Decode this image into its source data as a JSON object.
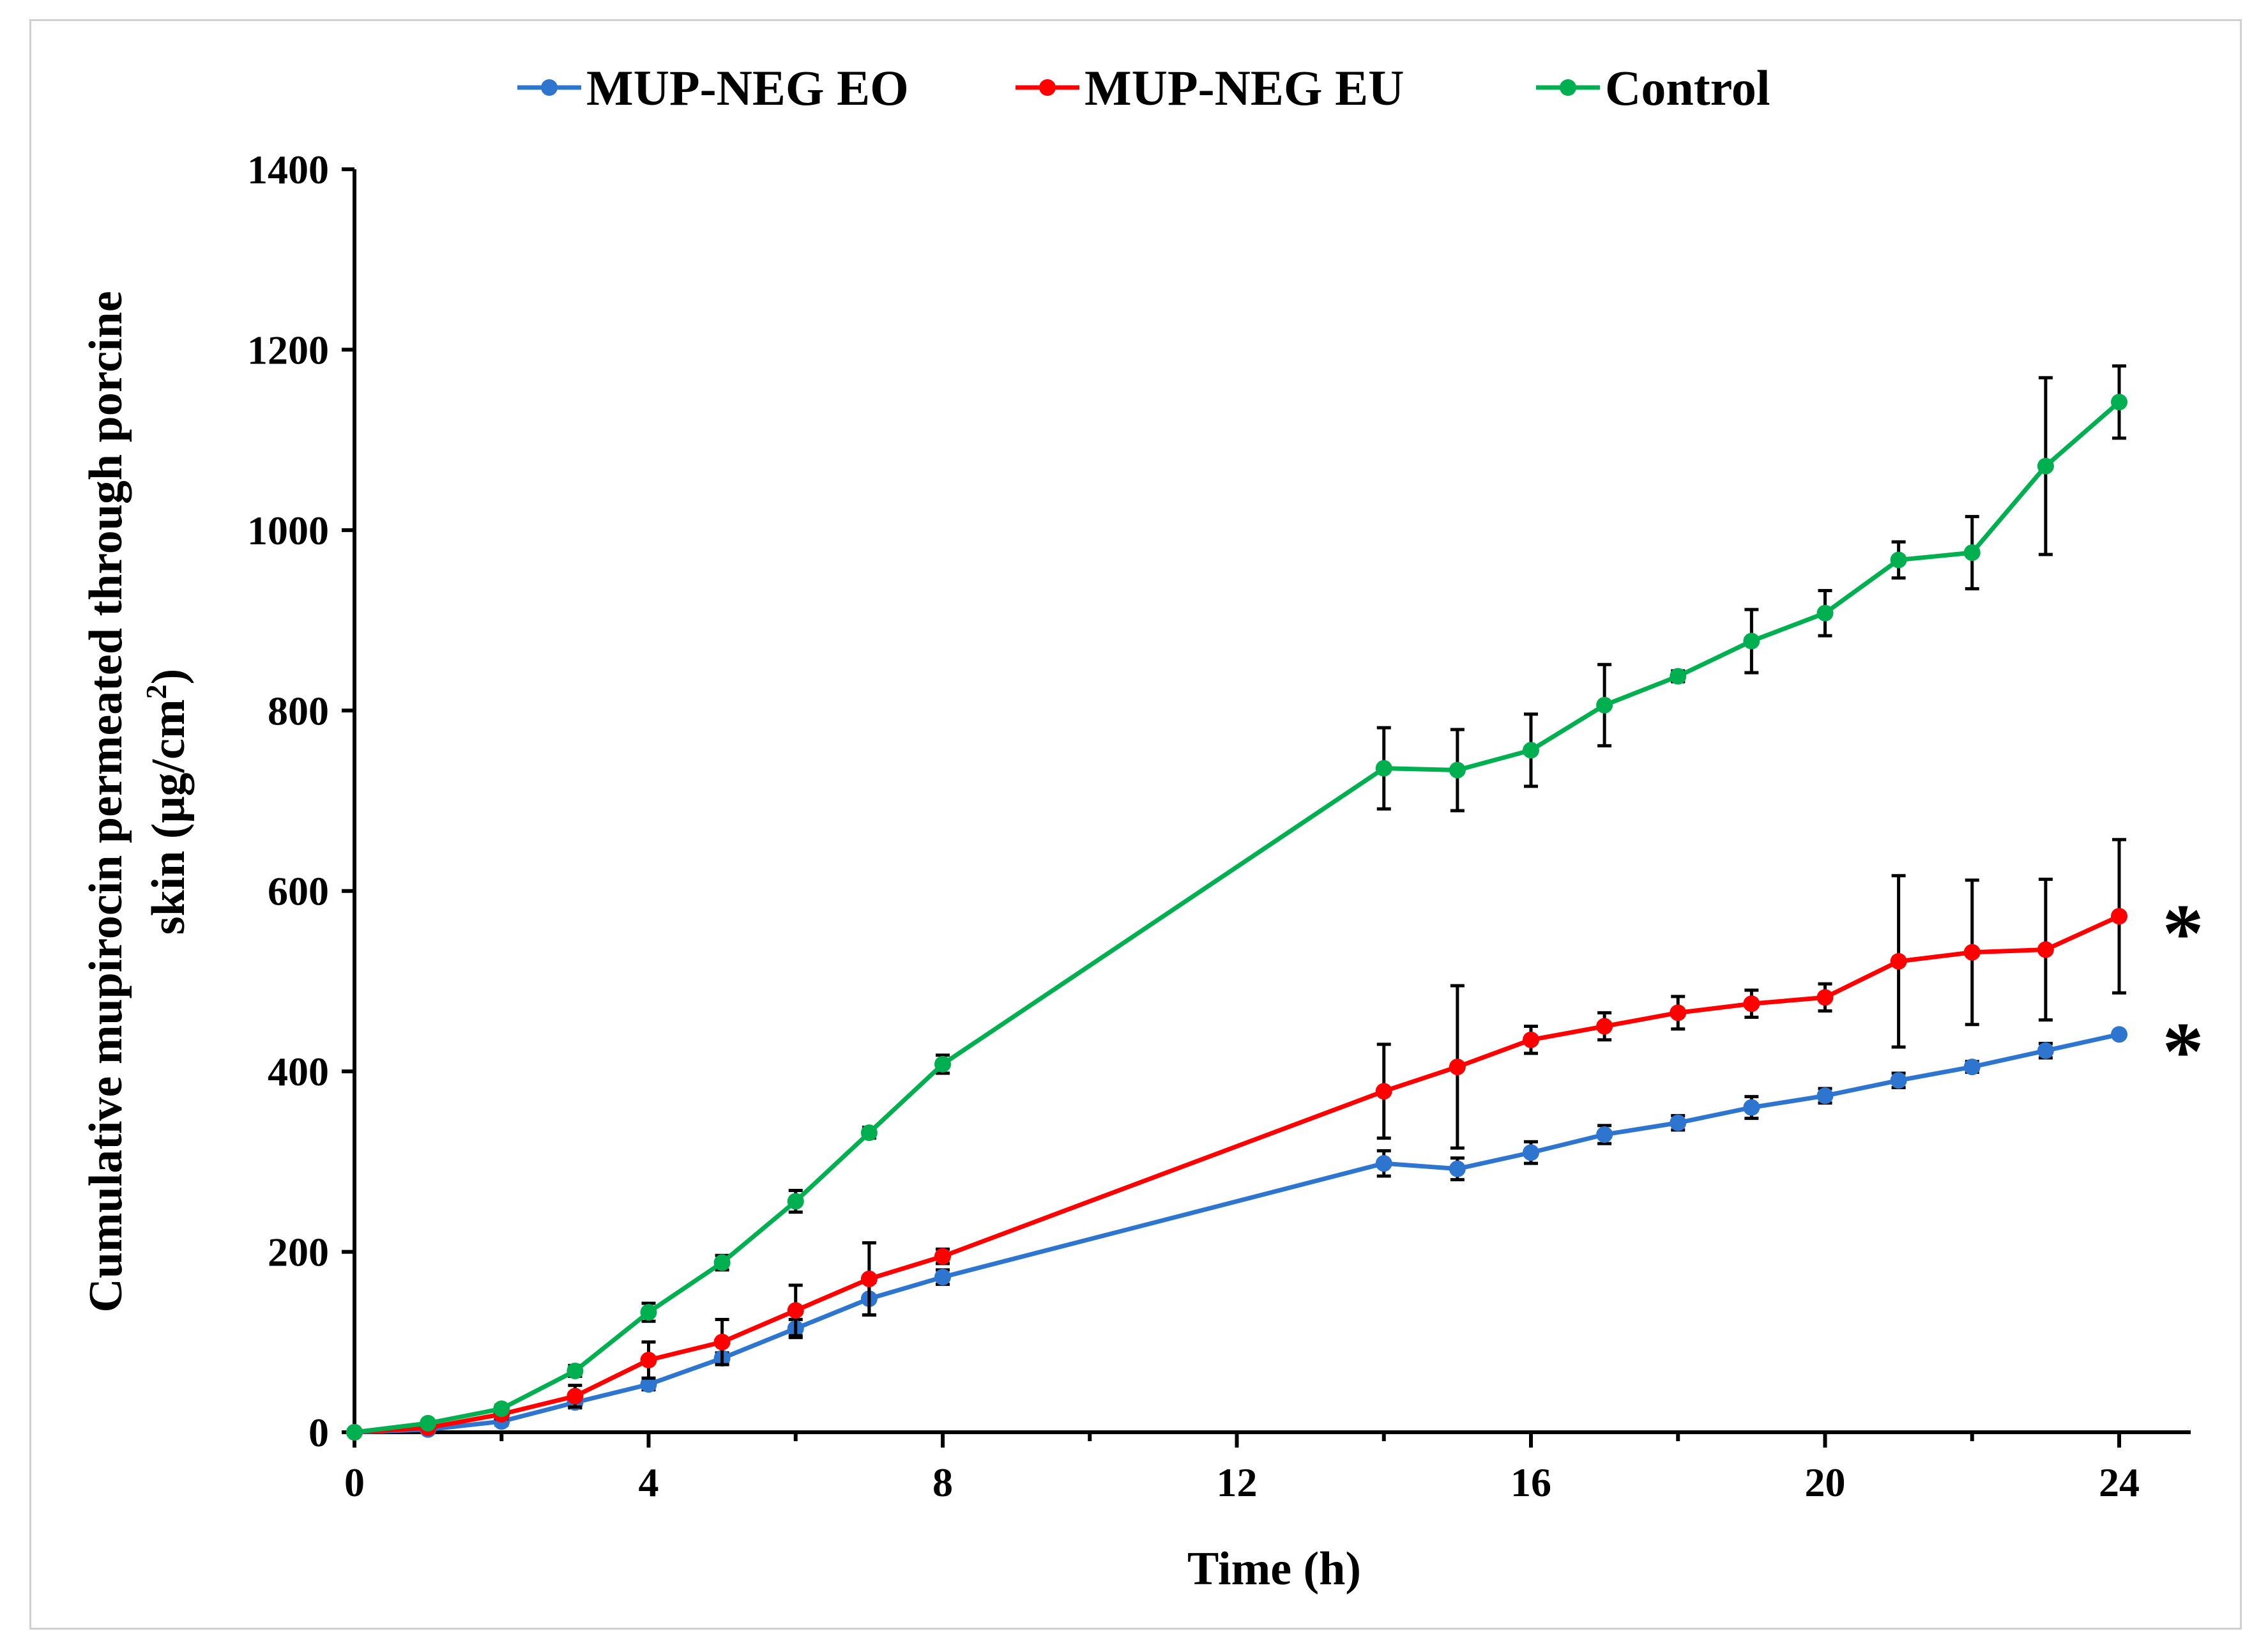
{
  "chart_data": {
    "type": "line",
    "title": "",
    "xlabel": "Time (h)",
    "ylabel_line1": "Cumulative  mupirocin  permeated through porcine",
    "ylabel_line2_main": "skin (μg/cm",
    "ylabel_line2_sup": "2",
    "ylabel_line2_end": ")",
    "xlim": [
      0,
      25
    ],
    "ylim": [
      0,
      1400
    ],
    "x_ticks": [
      0,
      4,
      8,
      12,
      16,
      20,
      24
    ],
    "y_ticks": [
      0,
      200,
      400,
      600,
      800,
      1000,
      1200,
      1400
    ],
    "legend_position": "top-center",
    "error_bar_cap": "top-and-bottom",
    "series": [
      {
        "name": "MUP-NEG EO",
        "color": "#2E75D0",
        "x": [
          0,
          1,
          2,
          3,
          4,
          5,
          6,
          7,
          8,
          14,
          15,
          16,
          17,
          18,
          19,
          20,
          21,
          22,
          23,
          24
        ],
        "y": [
          0,
          3,
          12,
          33,
          53,
          82,
          115,
          148,
          172,
          298,
          292,
          310,
          330,
          343,
          360,
          373,
          390,
          405,
          423,
          441
        ],
        "err": [
          0,
          2,
          4,
          6,
          6,
          6,
          10,
          18,
          8,
          14,
          12,
          12,
          10,
          8,
          12,
          8,
          8,
          6,
          8,
          0
        ]
      },
      {
        "name": "MUP-NEG EU",
        "color": "#FF0000",
        "x": [
          0,
          1,
          2,
          3,
          4,
          5,
          6,
          7,
          8,
          14,
          15,
          16,
          17,
          18,
          19,
          20,
          21,
          22,
          23,
          24
        ],
        "y": [
          0,
          5,
          20,
          40,
          80,
          100,
          135,
          170,
          195,
          378,
          405,
          435,
          450,
          465,
          475,
          482,
          522,
          532,
          535,
          572
        ],
        "err": [
          0,
          2,
          5,
          12,
          20,
          25,
          28,
          40,
          8,
          52,
          90,
          15,
          15,
          18,
          15,
          15,
          95,
          80,
          78,
          85
        ]
      },
      {
        "name": "Control",
        "color": "#00B050",
        "x": [
          0,
          1,
          2,
          3,
          4,
          5,
          6,
          7,
          8,
          14,
          15,
          16,
          17,
          18,
          19,
          20,
          21,
          22,
          23,
          24
        ],
        "y": [
          0,
          10,
          26,
          68,
          133,
          188,
          256,
          332,
          408,
          736,
          734,
          756,
          806,
          838,
          877,
          908,
          967,
          975,
          1071,
          1142
        ],
        "err": [
          0,
          3,
          4,
          6,
          10,
          8,
          12,
          6,
          10,
          45,
          45,
          40,
          45,
          6,
          35,
          25,
          20,
          40,
          98,
          40
        ]
      }
    ],
    "annotations": [
      {
        "text": "*",
        "series": "MUP-NEG EU"
      },
      {
        "text": "*",
        "series": "MUP-NEG EO"
      }
    ]
  }
}
